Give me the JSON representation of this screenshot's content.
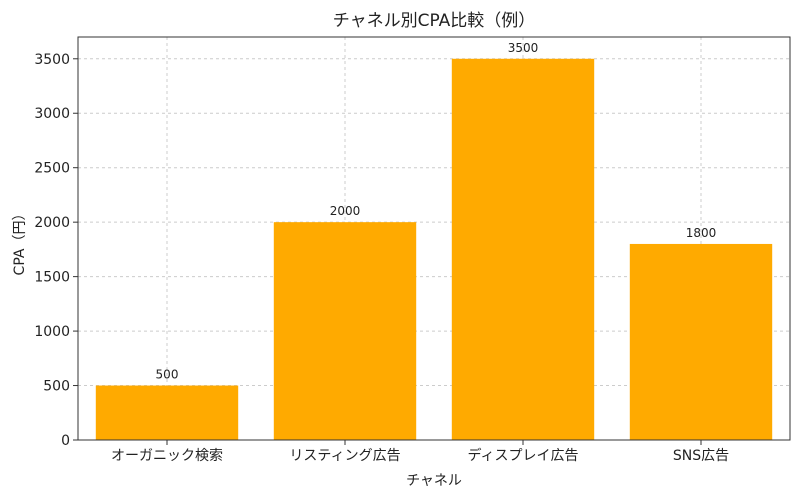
{
  "chart_data": {
    "type": "bar",
    "title": "チャネル別CPA比較（例）",
    "xlabel": "チャネル",
    "ylabel": "CPA（円）",
    "categories": [
      "オーガニック検索",
      "リスティング広告",
      "ディスプレイ広告",
      "SNS広告"
    ],
    "values": [
      500,
      2000,
      3500,
      1800
    ],
    "ylim": [
      0,
      3700
    ],
    "yticks": [
      0,
      500,
      1000,
      1500,
      2000,
      2500,
      3000,
      3500
    ],
    "bar_color": "#FFAA00",
    "grid": true,
    "grid_style": "dashed"
  }
}
